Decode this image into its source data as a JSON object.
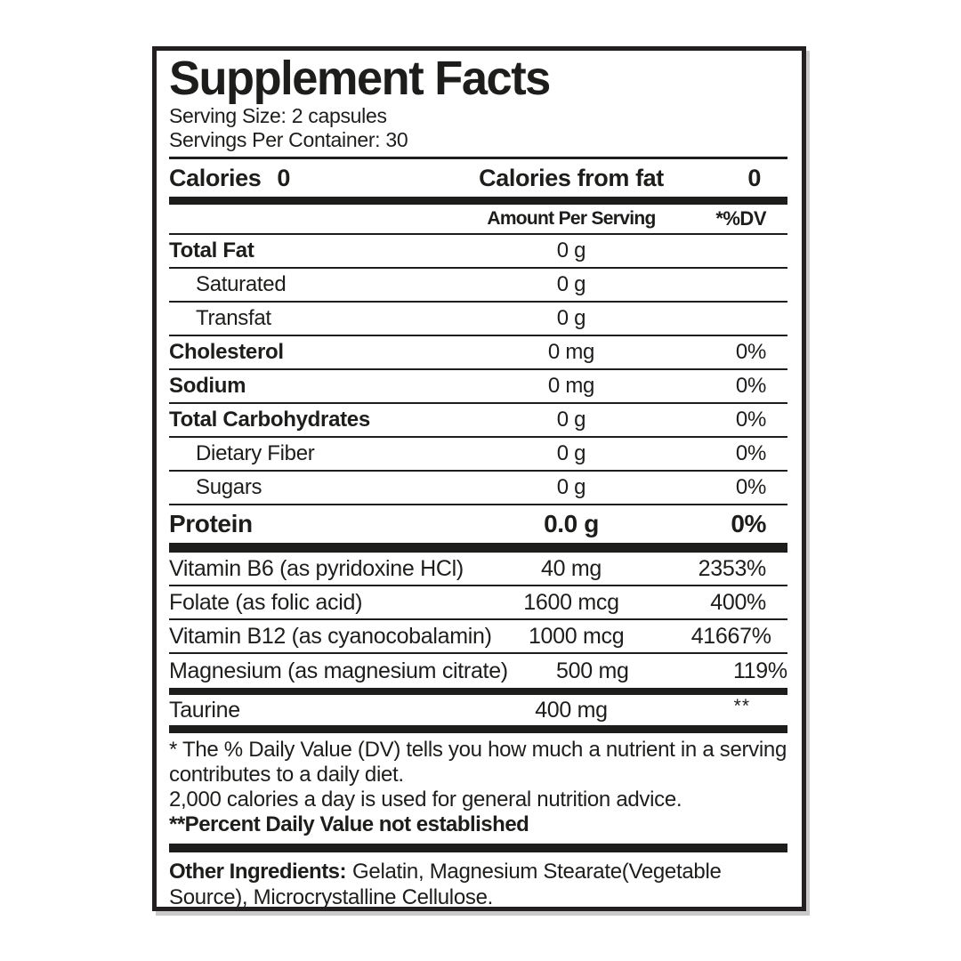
{
  "title": "Supplement Facts",
  "serving": {
    "size": "Serving Size: 2 capsules",
    "per_container": "Servings Per Container: 30"
  },
  "calories": {
    "label": "Calories",
    "value": "0",
    "from_fat_label": "Calories from fat",
    "from_fat_value": "0"
  },
  "columns": {
    "amount": "Amount Per Serving",
    "dv": "*%DV"
  },
  "rows": [
    {
      "name": "Total Fat",
      "amount": "0 g",
      "dv": ""
    },
    {
      "name": "Saturated",
      "amount": "0 g",
      "dv": ""
    },
    {
      "name": "Transfat",
      "amount": "0 g",
      "dv": ""
    },
    {
      "name": "Cholesterol",
      "amount": "0 mg",
      "dv": "0%"
    },
    {
      "name": "Sodium",
      "amount": "0 mg",
      "dv": "0%"
    },
    {
      "name": "Total Carbohydrates",
      "amount": "0 g",
      "dv": "0%"
    },
    {
      "name": "Dietary Fiber",
      "amount": "0 g",
      "dv": "0%"
    },
    {
      "name": "Sugars",
      "amount": "0 g",
      "dv": "0%"
    }
  ],
  "protein": {
    "name": "Protein",
    "amount": "0.0 g",
    "dv": "0%"
  },
  "supplements": [
    {
      "name": "Vitamin B6 (as pyridoxine HCl)",
      "amount": "40 mg",
      "dv": "2353%"
    },
    {
      "name": "Folate (as folic acid)",
      "amount": "1600 mcg",
      "dv": "400%"
    },
    {
      "name": "Vitamin B12 (as cyanocobalamin)",
      "amount": "1000 mcg",
      "dv": "41667%"
    },
    {
      "name": "Magnesium (as magnesium citrate)",
      "amount": "500 mg",
      "dv": "119%"
    }
  ],
  "taurine": {
    "name": "Taurine",
    "amount": "400 mg",
    "dv": "**"
  },
  "footnotes": {
    "dv_note": "* The % Daily Value (DV) tells you how much a nutrient in a serving contributes to a daily diet.",
    "calorie_note": "2,000 calories a day is used for general nutrition advice.",
    "not_established": "**Percent Daily Value not established"
  },
  "other_ingredients": {
    "label": "Other Ingredients:",
    "text": "Gelatin, Magnesium Stearate(Vegetable Source), Microcrystalline Cellulose."
  },
  "colors": {
    "ink": "#1d1d1b",
    "border": "#231f20",
    "background": "#ffffff"
  }
}
